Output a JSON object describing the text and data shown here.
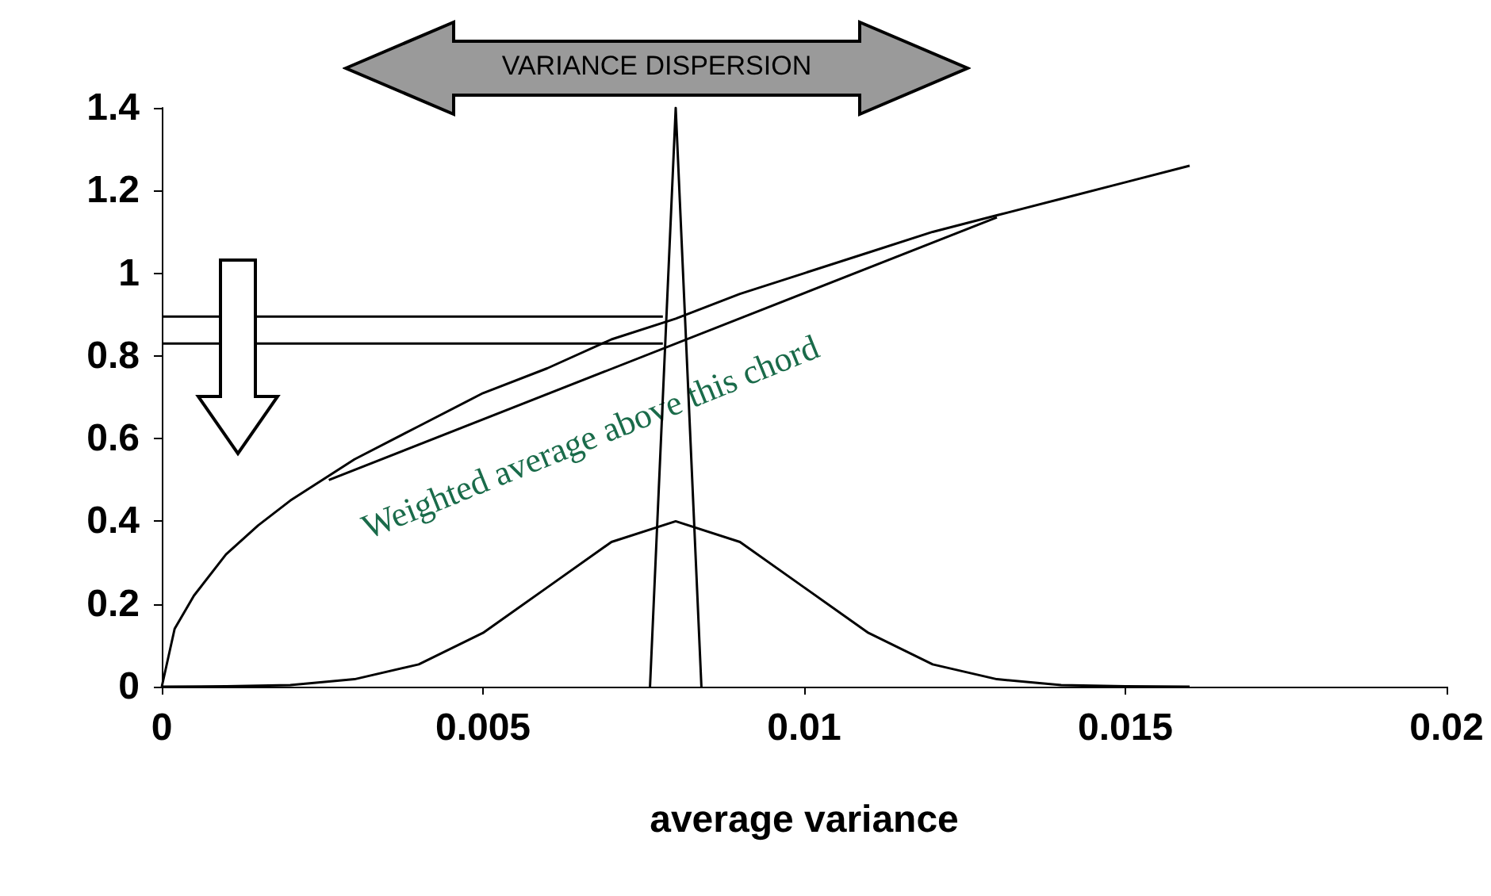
{
  "chart_data": {
    "type": "line",
    "xlabel": "average variance",
    "xlim": [
      0,
      0.02
    ],
    "xticks": [
      0,
      0.005,
      0.01,
      0.015,
      0.02
    ],
    "ylim": [
      0,
      1.4
    ],
    "yticks": [
      0,
      0.2,
      0.4,
      0.6,
      0.8,
      1,
      1.2,
      1.4
    ],
    "grid": false,
    "marker": "none",
    "line_style": "solid",
    "annotations": [
      "VARIANCE DISPERSION",
      "Weighted average above this chord"
    ],
    "series": [
      {
        "color": "#000000",
        "x": [
          0,
          0.0002,
          0.0005,
          0.001,
          0.0015,
          0.002,
          0.003,
          0.004,
          0.005,
          0.006,
          0.007,
          0.008,
          0.009,
          0.01,
          0.011,
          0.012,
          0.013,
          0.014,
          0.015,
          0.016
        ],
        "values": [
          0,
          0.14,
          0.22,
          0.32,
          0.39,
          0.45,
          0.55,
          0.63,
          0.71,
          0.77,
          0.84,
          0.89,
          0.95,
          1.0,
          1.05,
          1.1,
          1.14,
          1.18,
          1.22,
          1.26
        ]
      },
      {
        "color": "#000000",
        "x": [
          0,
          0.001,
          0.002,
          0.003,
          0.004,
          0.005,
          0.006,
          0.007,
          0.008,
          0.009,
          0.01,
          0.011,
          0.012,
          0.013,
          0.014,
          0.015,
          0.016
        ],
        "values": [
          0,
          0.001,
          0.004,
          0.018,
          0.054,
          0.13,
          0.24,
          0.35,
          0.4,
          0.35,
          0.24,
          0.13,
          0.054,
          0.018,
          0.004,
          0.001,
          0
        ]
      },
      {
        "color": "#000000",
        "x": [
          0.0076,
          0.008,
          0.0084
        ],
        "values": [
          0,
          1.4,
          0
        ]
      },
      {
        "color": "#000000",
        "x": [
          0.0026,
          0.013
        ],
        "values": [
          0.5,
          1.135
        ]
      },
      {
        "color": "#000000",
        "x": [
          0,
          0.0078
        ],
        "values": [
          0.895,
          0.895
        ]
      },
      {
        "color": "#000000",
        "x": [
          0,
          0.0078
        ],
        "values": [
          0.83,
          0.83
        ]
      }
    ]
  }
}
